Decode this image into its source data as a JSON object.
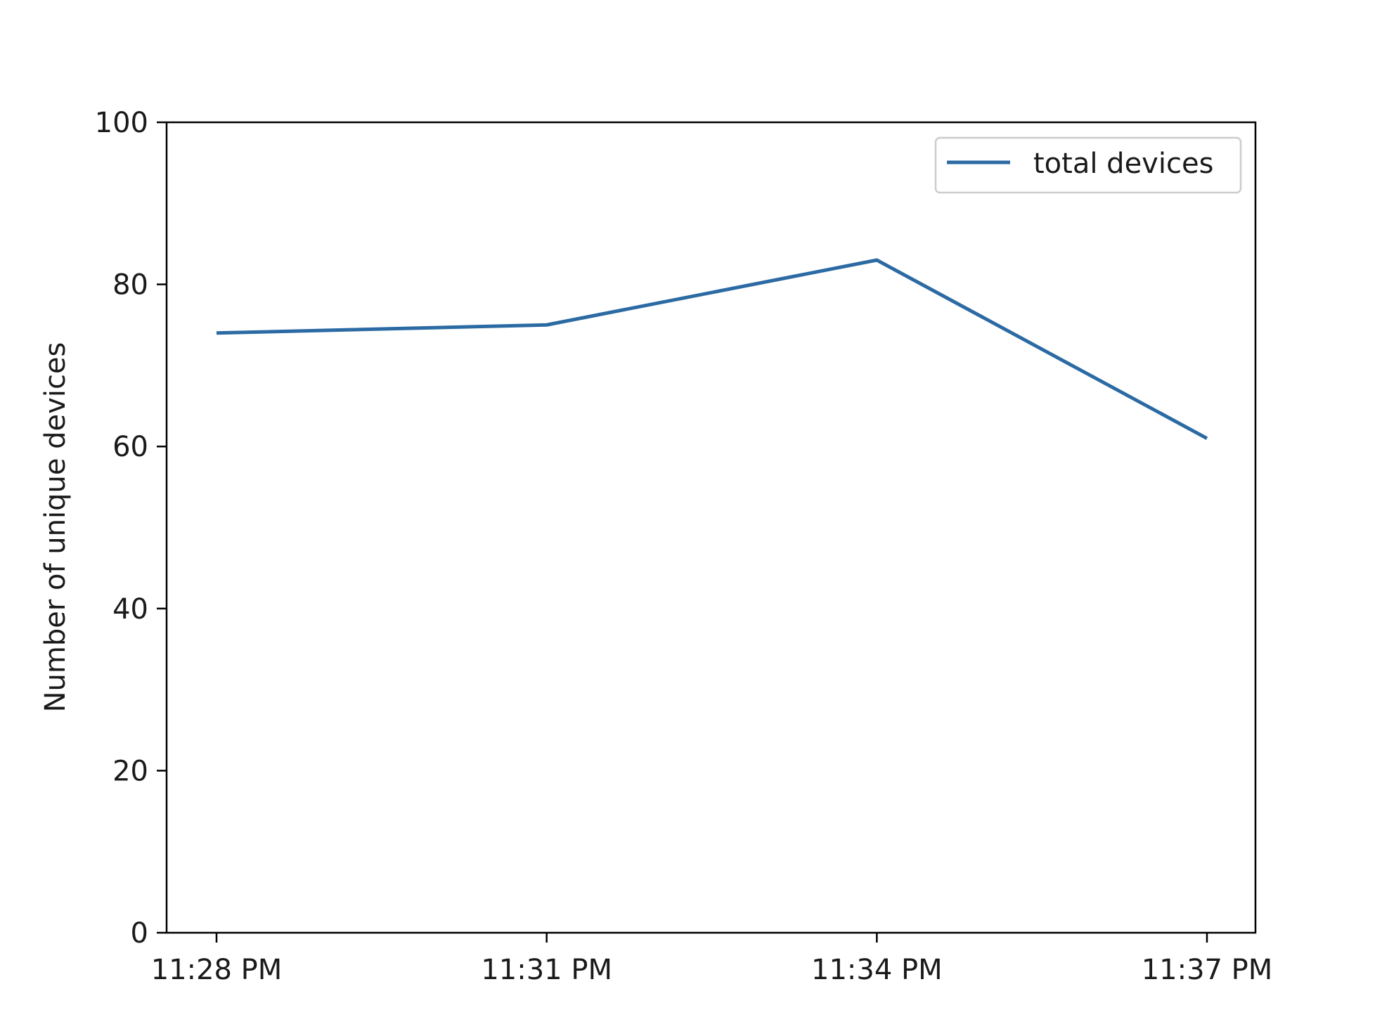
{
  "chart_data": {
    "type": "line",
    "title": "",
    "xlabel": "",
    "ylabel": "Number of unique devices",
    "categories": [
      "11:28 PM",
      "11:31 PM",
      "11:34 PM",
      "11:37 PM"
    ],
    "ylim": [
      0,
      100
    ],
    "yticks": [
      0,
      20,
      40,
      60,
      80,
      100
    ],
    "grid": false,
    "legend_position": "top-right",
    "series": [
      {
        "name": "total devices",
        "color": "#2b6aa3",
        "values": [
          74,
          75,
          83,
          61
        ]
      }
    ]
  }
}
